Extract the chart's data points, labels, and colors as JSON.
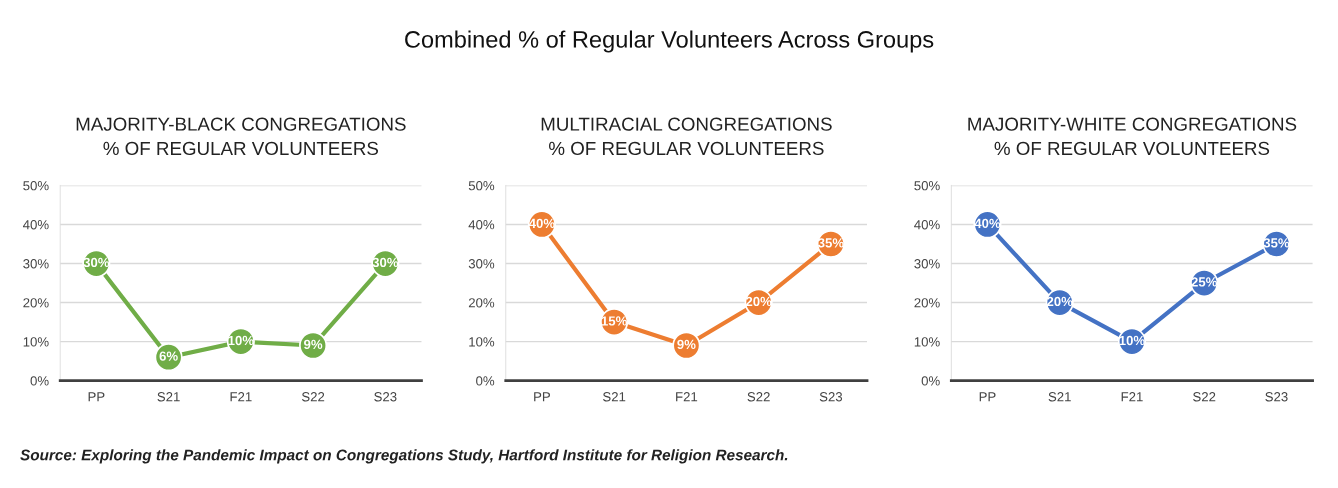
{
  "chart_data": [
    {
      "type": "other",
      "title": "Combined % of Regular Volunteers Across Groups",
      "annotations": [
        "Source: Exploring the Pandemic Impact on Congregations Study, Hartford Institute for Religion Research."
      ]
    },
    {
      "type": "line",
      "title": "MAJORITY-BLACK CONGREGATIONS\n% OF REGULAR VOLUNTEERS",
      "categories": [
        "PP",
        "S21",
        "F21",
        "S22",
        "S23"
      ],
      "series": [
        {
          "color": "#70ad47",
          "values": [
            30,
            6,
            10,
            9,
            30
          ],
          "value_labels": [
            "30%",
            "6%",
            "10%",
            "9%",
            "30%"
          ]
        }
      ],
      "ylim": [
        0,
        50
      ],
      "yticks": [
        {
          "value": 0,
          "label": "0%"
        },
        {
          "value": 10,
          "label": "10%"
        },
        {
          "value": 20,
          "label": "20%"
        },
        {
          "value": 30,
          "label": "30%"
        },
        {
          "value": 40,
          "label": "40%"
        },
        {
          "value": 50,
          "label": "50%"
        }
      ],
      "grid": "y",
      "marker": "circle",
      "line_style": "solid"
    },
    {
      "type": "line",
      "title": "MULTIRACIAL CONGREGATIONS\n% OF REGULAR VOLUNTEERS",
      "categories": [
        "PP",
        "S21",
        "F21",
        "S22",
        "S23"
      ],
      "series": [
        {
          "color": "#ed7d31",
          "values": [
            40,
            15,
            9,
            20,
            35
          ],
          "value_labels": [
            "40%",
            "15%",
            "9%",
            "20%",
            "35%"
          ]
        }
      ],
      "ylim": [
        0,
        50
      ],
      "yticks": [
        {
          "value": 0,
          "label": "0%"
        },
        {
          "value": 10,
          "label": "10%"
        },
        {
          "value": 20,
          "label": "20%"
        },
        {
          "value": 30,
          "label": "30%"
        },
        {
          "value": 40,
          "label": "40%"
        },
        {
          "value": 50,
          "label": "50%"
        }
      ],
      "grid": "y",
      "marker": "circle",
      "line_style": "solid"
    },
    {
      "type": "line",
      "title": "MAJORITY-WHITE CONGREGATIONS\n% OF REGULAR VOLUNTEERS",
      "categories": [
        "PP",
        "S21",
        "F21",
        "S22",
        "S23"
      ],
      "series": [
        {
          "color": "#4472c4",
          "values": [
            40,
            20,
            10,
            25,
            35
          ],
          "value_labels": [
            "40%",
            "20%",
            "10%",
            "25%",
            "35%"
          ]
        }
      ],
      "ylim": [
        0,
        50
      ],
      "yticks": [
        {
          "value": 0,
          "label": "0%"
        },
        {
          "value": 10,
          "label": "10%"
        },
        {
          "value": 20,
          "label": "20%"
        },
        {
          "value": 30,
          "label": "30%"
        },
        {
          "value": 40,
          "label": "40%"
        },
        {
          "value": 50,
          "label": "50%"
        }
      ],
      "grid": "y",
      "marker": "circle",
      "line_style": "solid"
    }
  ]
}
